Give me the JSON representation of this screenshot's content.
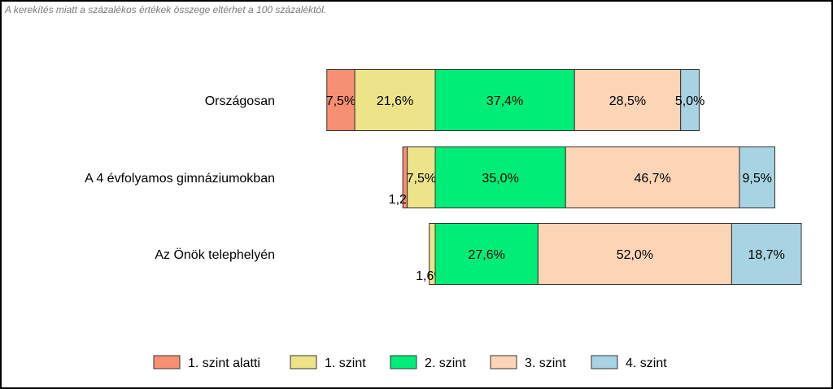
{
  "note": "A kerekítés miatt a százalékos értékek összege eltérhet a 100 százaléktól.",
  "chart_data": {
    "type": "bar",
    "orientation": "horizontal",
    "stacked": true,
    "categories": [
      "Országosan",
      "A 4 évfolyamos gimnáziumokban",
      "Az Önök telephelyén"
    ],
    "series": [
      {
        "name": "1. szint alatti",
        "color": "#f79072",
        "values": [
          7.5,
          1.2,
          0.0
        ],
        "labels": [
          "7,5%",
          "1,2%",
          ""
        ]
      },
      {
        "name": "1. szint",
        "color": "#ede48a",
        "values": [
          21.6,
          7.5,
          1.6
        ],
        "labels": [
          "21,6%",
          "7,5%",
          "1,6%"
        ]
      },
      {
        "name": "2. szint",
        "color": "#00ee77",
        "values": [
          37.4,
          35.0,
          27.6
        ],
        "labels": [
          "37,4%",
          "35,0%",
          "27,6%"
        ]
      },
      {
        "name": "3. szint",
        "color": "#fcd4b6",
        "values": [
          28.5,
          46.7,
          52.0
        ],
        "labels": [
          "28,5%",
          "46,7%",
          "52,0%"
        ]
      },
      {
        "name": "4. szint",
        "color": "#a8d3e3",
        "values": [
          5.0,
          9.5,
          18.7
        ],
        "labels": [
          "5,0%",
          "9,5%",
          "18,7%"
        ]
      }
    ],
    "diverging_at": "2. szint",
    "legend_position": "bottom",
    "grid": false
  }
}
